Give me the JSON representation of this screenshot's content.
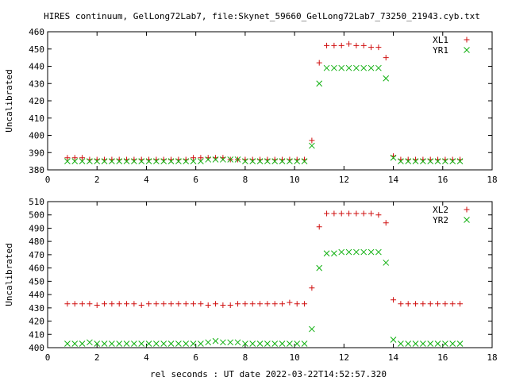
{
  "title": "HIRES continuum, GelLong72Lab7, file:Skynet_59660_GelLong72Lab7_73250_21943.cyb.txt",
  "xlabel": "rel seconds : UT date 2022-03-22T14:52:57.320",
  "colors": {
    "red": "#d01010",
    "green": "#10b010"
  },
  "chart_data": [
    {
      "type": "scatter",
      "ylabel": "Uncalibrated",
      "xlim": [
        0,
        18
      ],
      "ylim": [
        380,
        460
      ],
      "xticks": [
        0,
        2,
        4,
        6,
        8,
        10,
        12,
        14,
        16,
        18
      ],
      "yticks": [
        380,
        390,
        400,
        410,
        420,
        430,
        440,
        450,
        460
      ],
      "legend_position": "top-right",
      "series": [
        {
          "name": "XL1",
          "marker": "plus",
          "color": "#d01010",
          "x": [
            0.8,
            1.1,
            1.4,
            1.7,
            2.0,
            2.3,
            2.6,
            2.9,
            3.2,
            3.5,
            3.8,
            4.1,
            4.4,
            4.7,
            5.0,
            5.3,
            5.6,
            5.9,
            6.2,
            6.5,
            6.8,
            7.1,
            7.4,
            7.7,
            8.0,
            8.3,
            8.6,
            8.9,
            9.2,
            9.5,
            9.8,
            10.1,
            10.4,
            10.7,
            11.0,
            11.3,
            11.6,
            11.9,
            12.2,
            12.5,
            12.8,
            13.1,
            13.4,
            13.7,
            14.0,
            14.3,
            14.6,
            14.9,
            15.2,
            15.5,
            15.8,
            16.1,
            16.4,
            16.7
          ],
          "y": [
            387,
            387,
            387,
            386,
            386,
            386,
            386,
            386,
            386,
            386,
            386,
            386,
            386,
            386,
            386,
            386,
            386,
            387,
            387,
            387,
            387,
            387,
            386,
            386,
            386,
            386,
            386,
            386,
            386,
            386,
            386,
            386,
            386,
            397,
            442,
            452,
            452,
            452,
            453,
            452,
            452,
            451,
            451,
            445,
            388,
            386,
            386,
            386,
            386,
            386,
            386,
            386,
            386,
            386
          ]
        },
        {
          "name": "YR1",
          "marker": "cross",
          "color": "#10b010",
          "x": [
            0.8,
            1.1,
            1.4,
            1.7,
            2.0,
            2.3,
            2.6,
            2.9,
            3.2,
            3.5,
            3.8,
            4.1,
            4.4,
            4.7,
            5.0,
            5.3,
            5.6,
            5.9,
            6.2,
            6.5,
            6.8,
            7.1,
            7.4,
            7.7,
            8.0,
            8.3,
            8.6,
            8.9,
            9.2,
            9.5,
            9.8,
            10.1,
            10.4,
            10.7,
            11.0,
            11.3,
            11.6,
            11.9,
            12.2,
            12.5,
            12.8,
            13.1,
            13.4,
            13.7,
            14.0,
            14.3,
            14.6,
            14.9,
            15.2,
            15.5,
            15.8,
            16.1,
            16.4,
            16.7
          ],
          "y": [
            385,
            385,
            385,
            385,
            385,
            385,
            385,
            385,
            385,
            385,
            385,
            385,
            385,
            385,
            385,
            385,
            385,
            385,
            385,
            386,
            386,
            386,
            386,
            386,
            385,
            385,
            385,
            385,
            385,
            385,
            385,
            385,
            385,
            394,
            430,
            439,
            439,
            439,
            439,
            439,
            439,
            439,
            439,
            433,
            387,
            385,
            385,
            385,
            385,
            385,
            385,
            385,
            385,
            385
          ]
        }
      ]
    },
    {
      "type": "scatter",
      "ylabel": "Uncalibrated",
      "xlim": [
        0,
        18
      ],
      "ylim": [
        400,
        510
      ],
      "xticks": [
        0,
        2,
        4,
        6,
        8,
        10,
        12,
        14,
        16,
        18
      ],
      "yticks": [
        400,
        410,
        420,
        430,
        440,
        450,
        460,
        470,
        480,
        490,
        500,
        510
      ],
      "legend_position": "top-right",
      "series": [
        {
          "name": "XL2",
          "marker": "plus",
          "color": "#d01010",
          "x": [
            0.8,
            1.1,
            1.4,
            1.7,
            2.0,
            2.3,
            2.6,
            2.9,
            3.2,
            3.5,
            3.8,
            4.1,
            4.4,
            4.7,
            5.0,
            5.3,
            5.6,
            5.9,
            6.2,
            6.5,
            6.8,
            7.1,
            7.4,
            7.7,
            8.0,
            8.3,
            8.6,
            8.9,
            9.2,
            9.5,
            9.8,
            10.1,
            10.4,
            10.7,
            11.0,
            11.3,
            11.6,
            11.9,
            12.2,
            12.5,
            12.8,
            13.1,
            13.4,
            13.7,
            14.0,
            14.3,
            14.6,
            14.9,
            15.2,
            15.5,
            15.8,
            16.1,
            16.4,
            16.7
          ],
          "y": [
            433,
            433,
            433,
            433,
            432,
            433,
            433,
            433,
            433,
            433,
            432,
            433,
            433,
            433,
            433,
            433,
            433,
            433,
            433,
            432,
            433,
            432,
            432,
            433,
            433,
            433,
            433,
            433,
            433,
            433,
            434,
            433,
            433,
            445,
            491,
            501,
            501,
            501,
            501,
            501,
            501,
            501,
            500,
            494,
            436,
            433,
            433,
            433,
            433,
            433,
            433,
            433,
            433,
            433
          ]
        },
        {
          "name": "YR2",
          "marker": "cross",
          "color": "#10b010",
          "x": [
            0.8,
            1.1,
            1.4,
            1.7,
            2.0,
            2.3,
            2.6,
            2.9,
            3.2,
            3.5,
            3.8,
            4.1,
            4.4,
            4.7,
            5.0,
            5.3,
            5.6,
            5.9,
            6.2,
            6.5,
            6.8,
            7.1,
            7.4,
            7.7,
            8.0,
            8.3,
            8.6,
            8.9,
            9.2,
            9.5,
            9.8,
            10.1,
            10.4,
            10.7,
            11.0,
            11.3,
            11.6,
            11.9,
            12.2,
            12.5,
            12.8,
            13.1,
            13.4,
            13.7,
            14.0,
            14.3,
            14.6,
            14.9,
            15.2,
            15.5,
            15.8,
            16.1,
            16.4,
            16.7
          ],
          "y": [
            403,
            403,
            403,
            404,
            403,
            403,
            403,
            403,
            403,
            403,
            403,
            403,
            403,
            403,
            403,
            403,
            403,
            403,
            403,
            404,
            405,
            404,
            404,
            404,
            403,
            403,
            403,
            403,
            403,
            403,
            403,
            403,
            403,
            414,
            460,
            471,
            471,
            472,
            472,
            472,
            472,
            472,
            472,
            464,
            406,
            403,
            403,
            403,
            403,
            403,
            403,
            403,
            403,
            403
          ]
        }
      ]
    }
  ]
}
